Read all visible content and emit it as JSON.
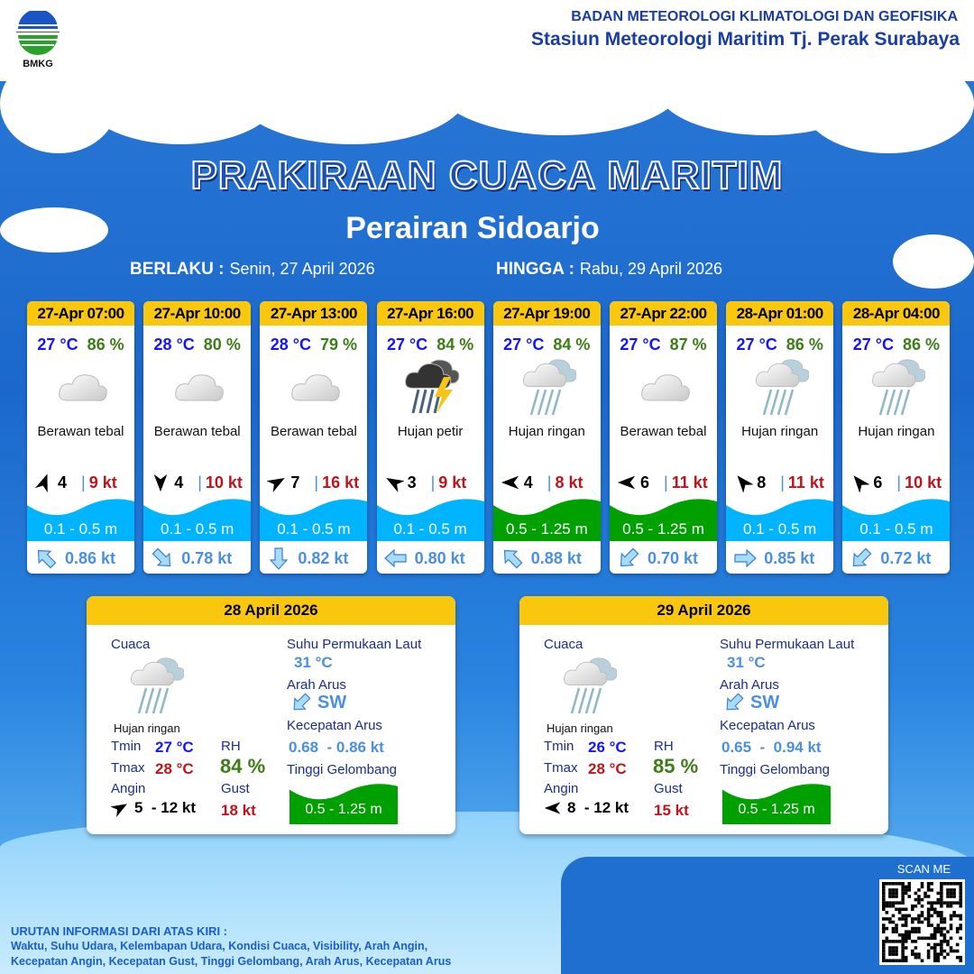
{
  "header": {
    "org_line1": "BADAN METEOROLOGI KLIMATOLOGI DAN GEOFISIKA",
    "org_line2": "Stasiun Meteorologi Maritim Tj. Perak Surabaya",
    "logo_text": "BMKG"
  },
  "title": "PRAKIRAAN CUACA MARITIM",
  "subtitle": "Perairan Sidoarjo",
  "validity": {
    "from_label": "BERLAKU :",
    "from_value": "Senin, 27 April 2026",
    "to_label": "HINGGA :",
    "to_value": "Rabu, 29 April 2026"
  },
  "colors": {
    "wave_low": "#00b4ff",
    "wave_mid": "#00a000",
    "header_yellow": "#f9c80e",
    "temp": "#1414ff",
    "rh": "#3c7d18",
    "gust": "#c0141c",
    "current": "#4a90e0"
  },
  "forecasts": [
    {
      "time": "27-Apr 07:00",
      "temp": "27 °C",
      "rh": "86 %",
      "icon": "cloudy-icon",
      "weather": "Berawan tebal",
      "wind_arrow_deg": 20,
      "wind": "4",
      "gust": "9 kt",
      "wave": "0.1 - 0.5 m",
      "wave_class": "low",
      "current_arrow_deg": 315,
      "current": "0.86 kt"
    },
    {
      "time": "27-Apr 10:00",
      "temp": "28 °C",
      "rh": "80 %",
      "icon": "cloudy-icon",
      "weather": "Berawan tebal",
      "wind_arrow_deg": 180,
      "wind": "4",
      "gust": "10 kt",
      "wave": "0.1 - 0.5 m",
      "wave_class": "low",
      "current_arrow_deg": 135,
      "current": "0.78 kt"
    },
    {
      "time": "27-Apr 13:00",
      "temp": "28 °C",
      "rh": "79 %",
      "icon": "cloudy-icon",
      "weather": "Berawan tebal",
      "wind_arrow_deg": 60,
      "wind": "7",
      "gust": "16 kt",
      "wave": "0.1 - 0.5 m",
      "wave_class": "low",
      "current_arrow_deg": 180,
      "current": "0.82 kt"
    },
    {
      "time": "27-Apr 16:00",
      "temp": "27 °C",
      "rh": "84 %",
      "icon": "thunderstorm-icon",
      "weather": "Hujan petir",
      "wind_arrow_deg": 300,
      "wind": "3",
      "gust": "9 kt",
      "wave": "0.1 - 0.5 m",
      "wave_class": "low",
      "current_arrow_deg": 270,
      "current": "0.80 kt"
    },
    {
      "time": "27-Apr 19:00",
      "temp": "27 °C",
      "rh": "84 %",
      "icon": "light-rain-icon",
      "weather": "Hujan ringan",
      "wind_arrow_deg": 270,
      "wind": "4",
      "gust": "8 kt",
      "wave": "0.5 - 1.25 m",
      "wave_class": "mid",
      "current_arrow_deg": 315,
      "current": "0.88 kt"
    },
    {
      "time": "27-Apr 22:00",
      "temp": "27 °C",
      "rh": "87 %",
      "icon": "cloudy-icon",
      "weather": "Berawan tebal",
      "wind_arrow_deg": 270,
      "wind": "6",
      "gust": "11 kt",
      "wave": "0.5 - 1.25 m",
      "wave_class": "mid",
      "current_arrow_deg": 225,
      "current": "0.70 kt"
    },
    {
      "time": "28-Apr 01:00",
      "temp": "27 °C",
      "rh": "86 %",
      "icon": "light-rain-icon",
      "weather": "Hujan ringan",
      "wind_arrow_deg": 320,
      "wind": "8",
      "gust": "11 kt",
      "wave": "0.1 - 0.5 m",
      "wave_class": "low",
      "current_arrow_deg": 90,
      "current": "0.85 kt"
    },
    {
      "time": "28-Apr 04:00",
      "temp": "27 °C",
      "rh": "86 %",
      "icon": "light-rain-icon",
      "weather": "Hujan ringan",
      "wind_arrow_deg": 320,
      "wind": "6",
      "gust": "10 kt",
      "wave": "0.1 - 0.5 m",
      "wave_class": "low",
      "current_arrow_deg": 225,
      "current": "0.72 kt"
    }
  ],
  "labels": {
    "weather": "Cuaca",
    "sst": "Suhu Permukaan Laut",
    "current_dir": "Arah Arus",
    "current_speed": "Kecepatan Arus",
    "wave_height": "Tinggi Gelombang",
    "tmin": "Tmin",
    "tmax": "Tmax",
    "rh": "RH",
    "wind": "Angin",
    "gust": "Gust"
  },
  "daily": [
    {
      "date": "28 April 2026",
      "icon": "light-rain-icon",
      "weather": "Hujan ringan",
      "tmin": "27 °C",
      "tmax": "28 °C",
      "rh": "84 %",
      "wind_arrow_deg": 60,
      "wind": "5  - 12 kt",
      "gust": "18 kt",
      "sst": "31 °C",
      "current_arrow_deg": 225,
      "current_dir": "SW",
      "current_speed": "0.68  - 0.86 kt",
      "wave": "0.5 - 1.25 m",
      "wave_class": "mid"
    },
    {
      "date": "29 April 2026",
      "icon": "light-rain-icon",
      "weather": "Hujan ringan",
      "tmin": "26 °C",
      "tmax": "28 °C",
      "rh": "85 %",
      "wind_arrow_deg": 270,
      "wind": "8  - 12 kt",
      "gust": "15 kt",
      "sst": "31 °C",
      "current_arrow_deg": 225,
      "current_dir": "SW",
      "current_speed": "0.65  -  0.94 kt",
      "wave": "0.5 - 1.25 m",
      "wave_class": "mid"
    }
  ],
  "footer": {
    "heading": "URUTAN INFORMASI DARI ATAS KIRI :",
    "line1": "Waktu, Suhu Udara, Kelembapan Udara, Kondisi Cuaca, Visibility, Arah Angin,",
    "line2": "Kecepatan Angin, Kecepatan Gust, Tinggi Gelombang, Arah Arus, Kecepatan Arus",
    "scan_label": "SCAN ME"
  }
}
